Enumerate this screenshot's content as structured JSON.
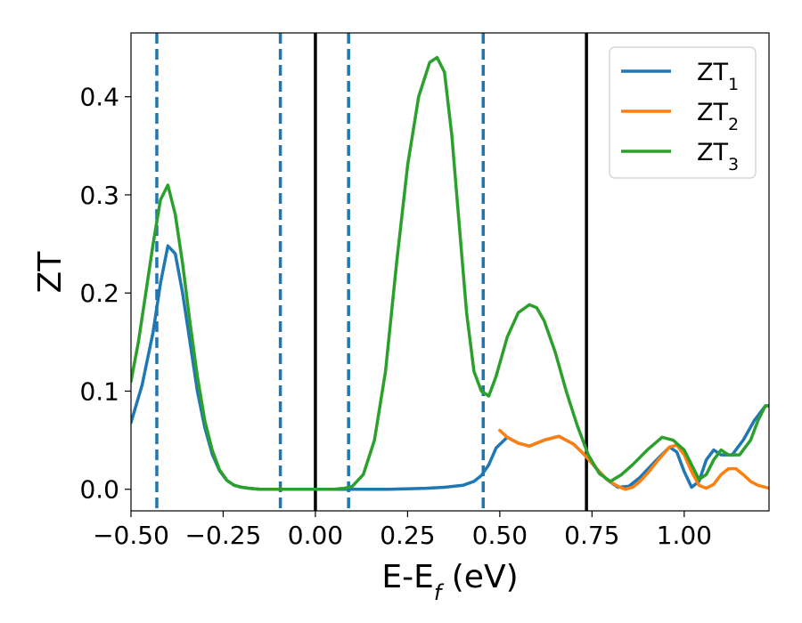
{
  "chart_data": {
    "type": "line",
    "xlabel": "E-E_f (eV)",
    "ylabel": "ZT",
    "xlim": [
      -0.5,
      1.23
    ],
    "ylim": [
      -0.022,
      0.465
    ],
    "x_ticks": [
      -0.5,
      -0.25,
      0.0,
      0.25,
      0.5,
      0.75,
      1.0
    ],
    "x_tick_labels": [
      "−0.50",
      "−0.25",
      "0.00",
      "0.25",
      "0.50",
      "0.75",
      "1.00"
    ],
    "y_ticks": [
      0.0,
      0.1,
      0.2,
      0.3,
      0.4
    ],
    "y_tick_labels": [
      "0.0",
      "0.1",
      "0.2",
      "0.3",
      "0.4"
    ],
    "grid": false,
    "legend": {
      "placement": "upper right",
      "entries": [
        {
          "base": "ZT",
          "sub": "1",
          "color": "#1f77b4"
        },
        {
          "base": "ZT",
          "sub": "2",
          "color": "#ff7f0e"
        },
        {
          "base": "ZT",
          "sub": "3",
          "color": "#2ca02c"
        }
      ]
    },
    "vlines": [
      {
        "x": -0.43,
        "style": "dashed",
        "color": "#1f77b4"
      },
      {
        "x": -0.095,
        "style": "dashed",
        "color": "#1f77b4"
      },
      {
        "x": 0.0,
        "style": "solid",
        "color": "#000000"
      },
      {
        "x": 0.09,
        "style": "dashed",
        "color": "#1f77b4"
      },
      {
        "x": 0.455,
        "style": "dashed",
        "color": "#1f77b4"
      },
      {
        "x": 0.735,
        "style": "solid",
        "color": "#000000"
      }
    ],
    "series": [
      {
        "name": "ZT_1",
        "color": "#1f77b4",
        "x": [
          -0.5,
          -0.47,
          -0.44,
          -0.42,
          -0.4,
          -0.38,
          -0.36,
          -0.34,
          -0.32,
          -0.3,
          -0.28,
          -0.26,
          -0.24,
          -0.22,
          -0.2,
          -0.18,
          -0.15,
          -0.1,
          0.0,
          0.1,
          0.2,
          0.3,
          0.35,
          0.4,
          0.43,
          0.45,
          0.47,
          0.49,
          0.52,
          0.55,
          0.58,
          0.62,
          0.66,
          0.7,
          0.73,
          0.76,
          0.79,
          0.82,
          0.85,
          0.88,
          0.92,
          0.96,
          0.98,
          1.0,
          1.02,
          1.04,
          1.06,
          1.08,
          1.1,
          1.13,
          1.16,
          1.19,
          1.22,
          1.23
        ],
        "y": [
          0.068,
          0.106,
          0.16,
          0.21,
          0.248,
          0.24,
          0.2,
          0.15,
          0.1,
          0.063,
          0.036,
          0.019,
          0.009,
          0.004,
          0.002,
          0.001,
          0.0,
          0.0,
          0.0,
          0.0,
          0.0,
          0.001,
          0.002,
          0.004,
          0.008,
          0.014,
          0.025,
          0.042,
          0.053,
          0.047,
          0.044,
          0.05,
          0.054,
          0.046,
          0.035,
          0.022,
          0.01,
          0.002,
          0.003,
          0.012,
          0.028,
          0.043,
          0.038,
          0.018,
          0.002,
          0.008,
          0.03,
          0.04,
          0.035,
          0.035,
          0.05,
          0.07,
          0.085,
          0.085
        ]
      },
      {
        "name": "ZT_2",
        "color": "#ff7f0e",
        "x": [
          0.5,
          0.52,
          0.55,
          0.58,
          0.62,
          0.66,
          0.7,
          0.73,
          0.76,
          0.79,
          0.82,
          0.84,
          0.86,
          0.88,
          0.9,
          0.93,
          0.96,
          0.98,
          1.0,
          1.02,
          1.04,
          1.06,
          1.08,
          1.1,
          1.12,
          1.14,
          1.16,
          1.18,
          1.2,
          1.23
        ],
        "y": [
          0.06,
          0.053,
          0.047,
          0.044,
          0.05,
          0.054,
          0.046,
          0.035,
          0.022,
          0.01,
          0.003,
          0.0,
          0.002,
          0.008,
          0.016,
          0.03,
          0.043,
          0.045,
          0.035,
          0.018,
          0.004,
          0.001,
          0.005,
          0.015,
          0.021,
          0.021,
          0.015,
          0.008,
          0.004,
          0.001
        ]
      },
      {
        "name": "ZT_3",
        "color": "#2ca02c",
        "x": [
          -0.5,
          -0.48,
          -0.46,
          -0.44,
          -0.42,
          -0.4,
          -0.38,
          -0.36,
          -0.34,
          -0.32,
          -0.3,
          -0.28,
          -0.26,
          -0.24,
          -0.22,
          -0.2,
          -0.18,
          -0.15,
          -0.1,
          -0.05,
          0.0,
          0.05,
          0.08,
          0.1,
          0.13,
          0.16,
          0.19,
          0.22,
          0.25,
          0.28,
          0.31,
          0.33,
          0.35,
          0.37,
          0.39,
          0.41,
          0.43,
          0.45,
          0.47,
          0.49,
          0.52,
          0.55,
          0.58,
          0.6,
          0.62,
          0.65,
          0.68,
          0.71,
          0.74,
          0.77,
          0.8,
          0.83,
          0.86,
          0.9,
          0.94,
          0.97,
          1.0,
          1.02,
          1.04,
          1.06,
          1.08,
          1.1,
          1.12,
          1.15,
          1.18,
          1.2,
          1.22,
          1.23
        ],
        "y": [
          0.11,
          0.15,
          0.2,
          0.25,
          0.295,
          0.31,
          0.28,
          0.23,
          0.17,
          0.115,
          0.07,
          0.04,
          0.02,
          0.009,
          0.004,
          0.002,
          0.001,
          0.0,
          0.0,
          0.0,
          0.0,
          0.0,
          0.001,
          0.003,
          0.015,
          0.05,
          0.12,
          0.23,
          0.33,
          0.4,
          0.435,
          0.44,
          0.425,
          0.36,
          0.27,
          0.18,
          0.12,
          0.1,
          0.095,
          0.115,
          0.155,
          0.18,
          0.188,
          0.185,
          0.172,
          0.14,
          0.1,
          0.065,
          0.035,
          0.016,
          0.008,
          0.015,
          0.025,
          0.04,
          0.053,
          0.05,
          0.04,
          0.025,
          0.01,
          0.015,
          0.03,
          0.04,
          0.035,
          0.035,
          0.05,
          0.07,
          0.085,
          0.085
        ]
      }
    ]
  }
}
